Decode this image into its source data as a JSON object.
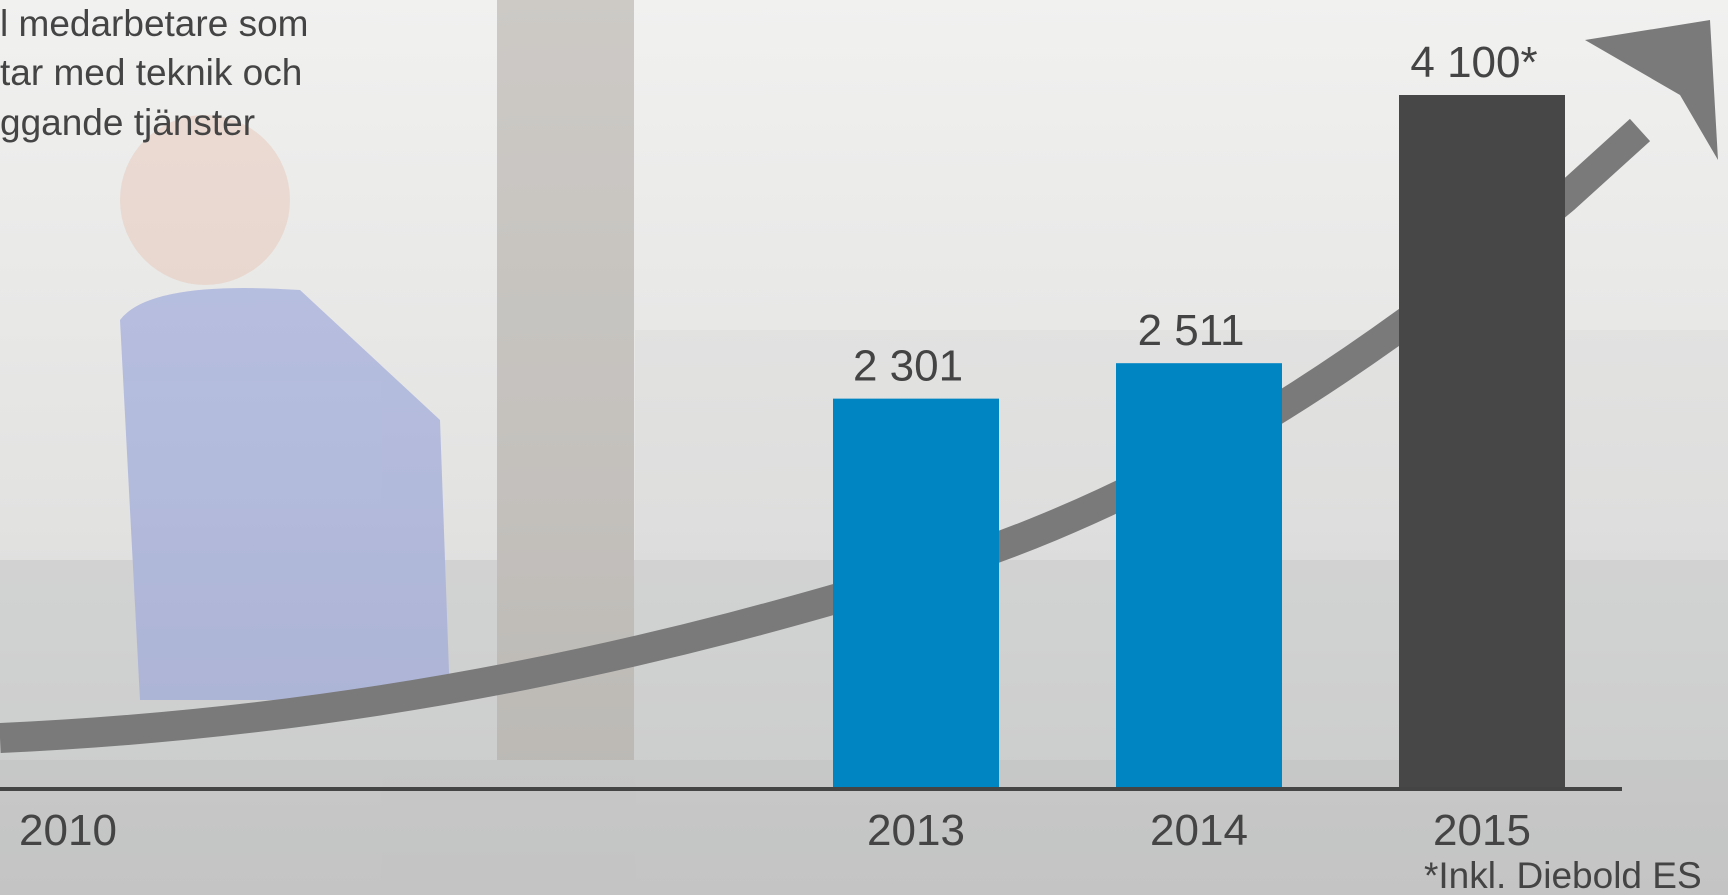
{
  "chart_data": {
    "type": "bar",
    "annotation_lines": [
      "l medarbetare som",
      "tar med teknik och",
      "ggande tjänster"
    ],
    "categories": [
      "2010",
      "2013",
      "2014",
      "2015"
    ],
    "values": [
      null,
      2301,
      2511,
      4100
    ],
    "value_labels": [
      null,
      "2 301",
      "2 511",
      "4 100*"
    ],
    "colors": [
      "#0085c3",
      "#0085c3",
      "#0085c3",
      "#474747"
    ],
    "footnote": "*Inkl. Diebold ES"
  }
}
